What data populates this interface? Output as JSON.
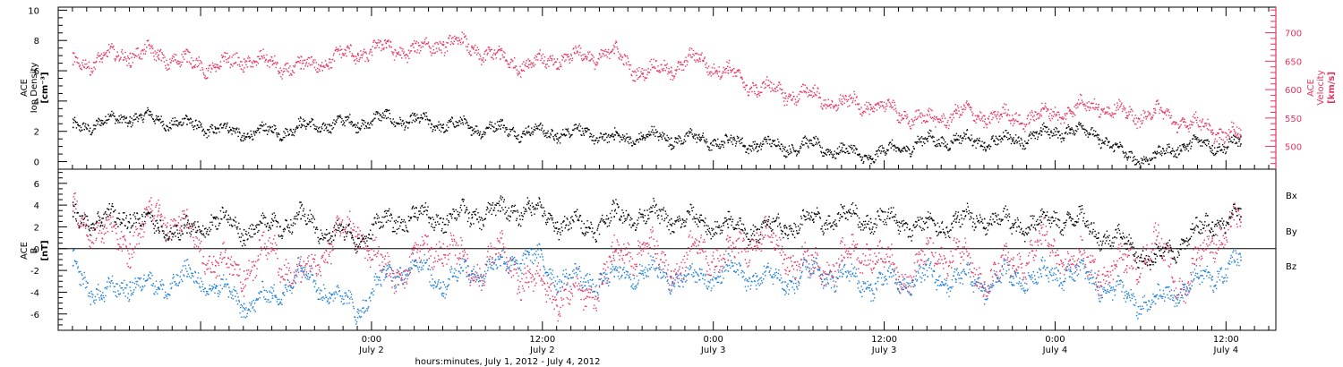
{
  "colors": {
    "black": "#000000",
    "pink": "#e8335f",
    "blue": "#1e7fd6",
    "axis": "#000000"
  },
  "x_axis": {
    "title": "hours:minutes, July  1, 2012 - July  4, 2012",
    "range_hours": [
      -22,
      63.5
    ],
    "ticks": [
      {
        "h": 0,
        "time": "0:00",
        "date": "July 2"
      },
      {
        "h": 12,
        "time": "12:00",
        "date": "July 2"
      },
      {
        "h": 24,
        "time": "0:00",
        "date": "July 3"
      },
      {
        "h": 36,
        "time": "12:00",
        "date": "July 3"
      },
      {
        "h": 48,
        "time": "0:00",
        "date": "July 4"
      },
      {
        "h": 60,
        "time": "12:00",
        "date": "July 4"
      }
    ]
  },
  "chart_data": [
    {
      "type": "scatter",
      "panel": "top",
      "ylabel_lines": [
        "ACE",
        "Ion Density",
        "[cm⁻³]"
      ],
      "ylim": [
        -0.5,
        10.2
      ],
      "yticks": [
        "0",
        "2",
        "4",
        "6",
        "8",
        "10"
      ],
      "ytick_values": [
        0,
        2,
        4,
        6,
        8,
        10
      ],
      "y2label_lines": [
        "ACE",
        "Velocity",
        "[km/s]"
      ],
      "y2lim": [
        460,
        745
      ],
      "y2ticks": [
        "500",
        "550",
        "600",
        "650",
        "700"
      ],
      "y2tick_values": [
        500,
        550,
        600,
        650,
        700
      ],
      "series": [
        {
          "color": "black",
          "axis": "left",
          "x": [
            -21,
            -19,
            -17,
            -15,
            -13,
            -11,
            -9,
            -7,
            -5,
            -3,
            -1,
            1,
            3,
            5,
            7,
            9,
            11,
            13,
            15,
            17,
            19,
            21,
            23,
            25,
            27,
            29,
            31,
            33,
            35,
            37,
            39,
            41,
            43,
            45,
            47,
            49,
            51,
            53,
            55,
            57,
            59,
            61
          ],
          "y": [
            2.3,
            2.6,
            3.0,
            2.8,
            2.5,
            2.2,
            1.9,
            2.0,
            2.3,
            2.5,
            2.6,
            2.9,
            2.7,
            2.5,
            2.3,
            2.2,
            2.0,
            1.9,
            2.0,
            1.5,
            1.7,
            1.6,
            1.5,
            1.3,
            1.2,
            1.0,
            1.1,
            0.7,
            0.4,
            0.9,
            1.4,
            1.5,
            1.3,
            1.5,
            1.8,
            2.2,
            1.8,
            0.3,
            0.3,
            1.2,
            1.1,
            1.2
          ],
          "spread": 0.6
        },
        {
          "color": "pink",
          "axis": "right",
          "x": [
            -21,
            -19,
            -17,
            -15,
            -13,
            -11,
            -9,
            -7,
            -5,
            -3,
            -1,
            1,
            3,
            5,
            7,
            9,
            11,
            13,
            15,
            17,
            19,
            21,
            23,
            25,
            27,
            29,
            31,
            33,
            35,
            37,
            39,
            41,
            43,
            45,
            47,
            49,
            51,
            53,
            55,
            57,
            59,
            61
          ],
          "y": [
            645,
            655,
            665,
            662,
            650,
            640,
            655,
            645,
            638,
            655,
            665,
            675,
            668,
            685,
            675,
            655,
            645,
            655,
            660,
            665,
            630,
            640,
            655,
            630,
            605,
            595,
            590,
            575,
            575,
            560,
            545,
            560,
            555,
            550,
            555,
            565,
            575,
            555,
            560,
            545,
            530,
            520
          ],
          "spread": 20
        }
      ]
    },
    {
      "type": "scatter",
      "panel": "bottom",
      "ylabel_lines": [
        "ACE",
        "B",
        "[nT]"
      ],
      "ylim": [
        -7.5,
        7.3
      ],
      "yticks": [
        "-6",
        "-4",
        "-2",
        "0",
        "2",
        "4",
        "6"
      ],
      "ytick_values": [
        -6,
        -4,
        -2,
        0,
        2,
        4,
        6
      ],
      "legend_position": "right",
      "series": [
        {
          "name": "Bx",
          "color": "black",
          "x": [
            -21,
            -19,
            -17,
            -15,
            -13,
            -11,
            -9,
            -7,
            -5,
            -3,
            -1,
            1,
            3,
            5,
            7,
            9,
            11,
            13,
            15,
            17,
            19,
            21,
            23,
            25,
            27,
            29,
            31,
            33,
            35,
            37,
            39,
            41,
            43,
            45,
            47,
            49,
            51,
            53,
            55,
            57,
            59,
            61
          ],
          "y": [
            3.0,
            2.5,
            3.2,
            2.0,
            1.5,
            2.8,
            1.8,
            2.2,
            2.8,
            1.5,
            1.0,
            2.5,
            3.0,
            2.8,
            3.2,
            3.5,
            3.8,
            2.5,
            2.0,
            3.0,
            3.2,
            2.8,
            2.5,
            2.0,
            1.8,
            2.2,
            2.5,
            3.0,
            2.8,
            2.5,
            2.0,
            2.5,
            2.8,
            2.2,
            2.5,
            3.0,
            1.5,
            0.5,
            -1.2,
            0.8,
            2.5,
            3.0
          ],
          "spread": 1.3
        },
        {
          "name": "By",
          "color": "blue",
          "x": [
            -21,
            -19,
            -17,
            -15,
            -13,
            -11,
            -9,
            -7,
            -5,
            -3,
            -1,
            1,
            3,
            5,
            7,
            9,
            11,
            13,
            15,
            17,
            19,
            21,
            23,
            25,
            27,
            29,
            31,
            33,
            35,
            37,
            39,
            41,
            43,
            45,
            47,
            49,
            51,
            53,
            55,
            57,
            59,
            61
          ],
          "y": [
            -1.5,
            -4.5,
            -3.0,
            -3.5,
            -2.5,
            -3.5,
            -5.0,
            -4.5,
            -2.0,
            -4.0,
            -5.5,
            -2.5,
            -1.5,
            -3.0,
            -2.0,
            -1.5,
            -0.5,
            -2.5,
            -3.0,
            -2.5,
            -2.0,
            -2.5,
            -2.8,
            -2.0,
            -2.5,
            -3.0,
            -2.2,
            -2.5,
            -3.2,
            -3.0,
            -2.5,
            -2.8,
            -3.2,
            -2.5,
            -2.5,
            -2.0,
            -3.0,
            -4.5,
            -5.0,
            -3.5,
            -2.5,
            -1.0
          ],
          "spread": 1.4
        },
        {
          "name": "Bz",
          "color": "pink",
          "x": [
            -21,
            -19,
            -17,
            -15,
            -13,
            -11,
            -9,
            -7,
            -5,
            -3,
            -1,
            1,
            3,
            5,
            7,
            9,
            11,
            13,
            15,
            17,
            19,
            21,
            23,
            25,
            27,
            29,
            31,
            33,
            35,
            37,
            39,
            41,
            43,
            45,
            47,
            49,
            51,
            53,
            55,
            57,
            59,
            61
          ],
          "y": [
            3.5,
            1.5,
            0.5,
            3.5,
            2.0,
            -1.5,
            -2.0,
            0.0,
            -3.0,
            0.5,
            2.0,
            -2.5,
            -1.0,
            0.5,
            -2.0,
            -0.5,
            -3.0,
            -4.0,
            -4.5,
            -1.0,
            0.5,
            -2.0,
            0.0,
            -1.0,
            1.5,
            -0.5,
            -2.0,
            -1.0,
            0.0,
            -2.5,
            -1.0,
            0.0,
            -3.0,
            -1.5,
            0.5,
            -1.0,
            -2.0,
            -1.5,
            0.5,
            -3.5,
            1.0,
            2.5
          ],
          "spread": 2.0
        }
      ]
    }
  ]
}
